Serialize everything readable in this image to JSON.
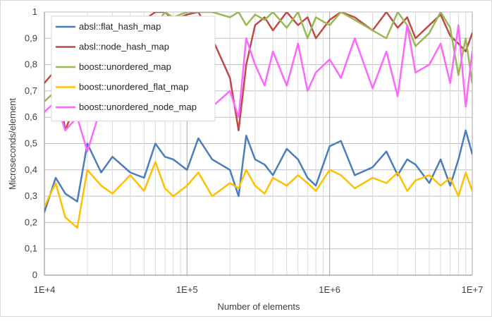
{
  "chart_data": {
    "type": "line",
    "xlabel": "Number of elements",
    "ylabel": "Microseconds/element",
    "xscale": "log",
    "xlim": [
      10000,
      10000000
    ],
    "ylim": [
      0,
      1
    ],
    "x_ticks": [
      10000,
      100000,
      1000000,
      10000000
    ],
    "x_tick_labels": [
      "1E+4",
      "1E+5",
      "1E+6",
      "1E+7"
    ],
    "y_ticks": [
      0,
      0.1,
      0.2,
      0.3,
      0.4,
      0.5,
      0.6,
      0.7,
      0.8,
      0.9,
      1
    ],
    "y_tick_labels": [
      "0",
      "0,1",
      "0,2",
      "0,3",
      "0,4",
      "0,5",
      "0,6",
      "0,7",
      "0,8",
      "0,9",
      "1"
    ],
    "grid": true,
    "legend_position": "top-left",
    "x": [
      10000,
      12000,
      14000,
      17000,
      20000,
      25000,
      30000,
      40000,
      50000,
      60000,
      70000,
      80000,
      100000,
      120000,
      150000,
      200000,
      230000,
      260000,
      300000,
      350000,
      400000,
      500000,
      600000,
      700000,
      800000,
      1000000,
      1200000,
      1500000,
      2000000,
      2500000,
      3000000,
      3500000,
      4000000,
      5000000,
      6000000,
      7000000,
      8000000,
      9000000,
      10000000
    ],
    "series": [
      {
        "name": "absl::flat_hash_map",
        "color": "#4a7ebb",
        "values": [
          0.24,
          0.37,
          0.31,
          0.28,
          0.5,
          0.39,
          0.45,
          0.39,
          0.37,
          0.5,
          0.45,
          0.44,
          0.4,
          0.52,
          0.44,
          0.4,
          0.3,
          0.53,
          0.44,
          0.42,
          0.38,
          0.48,
          0.44,
          0.37,
          0.34,
          0.49,
          0.51,
          0.38,
          0.41,
          0.47,
          0.38,
          0.44,
          0.42,
          0.35,
          0.44,
          0.34,
          0.44,
          0.55,
          0.46
        ]
      },
      {
        "name": "absl::node_hash_map",
        "color": "#be4b48",
        "values": [
          0.73,
          0.78,
          0.55,
          0.67,
          0.6,
          0.75,
          0.85,
          0.95,
          0.97,
          1.0,
          1.0,
          0.97,
          0.99,
          1.0,
          0.9,
          0.75,
          0.55,
          0.8,
          0.95,
          0.98,
          0.93,
          1.0,
          0.95,
          0.98,
          0.9,
          0.97,
          1.0,
          0.98,
          0.93,
          1.0,
          0.94,
          0.98,
          0.9,
          0.95,
          0.99,
          0.91,
          0.88,
          0.85,
          0.92
        ]
      },
      {
        "name": "boost::unordered_map",
        "color": "#98b954",
        "values": [
          0.66,
          0.7,
          0.72,
          0.74,
          0.75,
          0.83,
          0.85,
          0.9,
          0.92,
          0.95,
          1.0,
          0.98,
          1.0,
          1.0,
          1.0,
          0.98,
          1.0,
          0.95,
          0.99,
          0.97,
          1.0,
          0.94,
          1.0,
          0.9,
          0.98,
          0.95,
          1.0,
          0.97,
          0.93,
          0.9,
          1.0,
          0.95,
          0.87,
          0.92,
          1.0,
          0.94,
          0.76,
          0.9,
          0.73
        ]
      },
      {
        "name": "boost::unordered_flat_map",
        "color": "#ffc000",
        "values": [
          0.26,
          0.35,
          0.22,
          0.18,
          0.4,
          0.34,
          0.31,
          0.38,
          0.32,
          0.43,
          0.33,
          0.3,
          0.34,
          0.39,
          0.3,
          0.35,
          0.33,
          0.4,
          0.34,
          0.31,
          0.37,
          0.34,
          0.38,
          0.35,
          0.32,
          0.4,
          0.38,
          0.33,
          0.37,
          0.35,
          0.39,
          0.32,
          0.36,
          0.38,
          0.34,
          0.37,
          0.3,
          0.39,
          0.32
        ]
      },
      {
        "name": "boost::unordered_node_map",
        "color": "#ff66ff",
        "values": [
          0.62,
          0.66,
          0.55,
          0.6,
          0.47,
          0.64,
          0.72,
          0.68,
          0.74,
          0.63,
          0.72,
          0.7,
          0.66,
          0.71,
          0.64,
          0.7,
          0.6,
          0.9,
          0.8,
          0.72,
          0.85,
          0.72,
          0.88,
          0.7,
          0.77,
          0.82,
          0.75,
          0.9,
          0.71,
          0.85,
          0.68,
          0.95,
          0.77,
          0.8,
          0.88,
          0.73,
          0.95,
          0.64,
          0.85
        ]
      }
    ]
  }
}
